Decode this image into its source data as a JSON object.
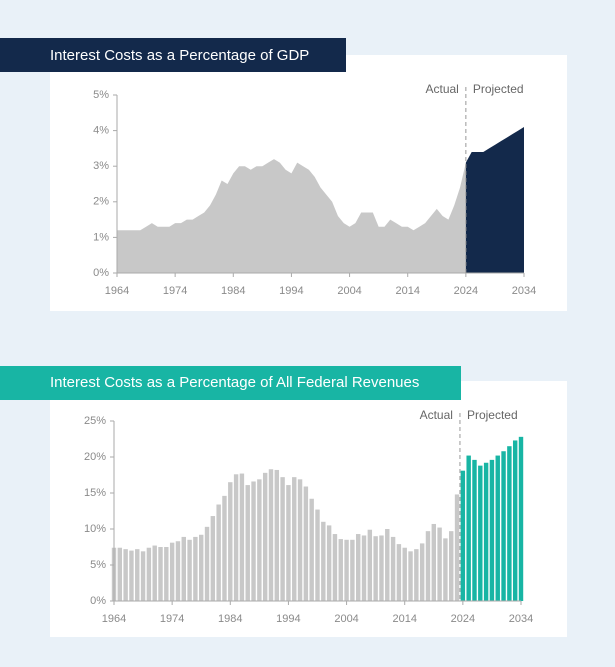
{
  "chart_data": [
    {
      "type": "area",
      "title": "Interest Costs as a Percentage of GDP",
      "series": [
        {
          "name": "Actual",
          "color": "#c8c8c8",
          "x": [
            1964,
            1965,
            1966,
            1967,
            1968,
            1969,
            1970,
            1971,
            1972,
            1973,
            1974,
            1975,
            1976,
            1977,
            1978,
            1979,
            1980,
            1981,
            1982,
            1983,
            1984,
            1985,
            1986,
            1987,
            1988,
            1989,
            1990,
            1991,
            1992,
            1993,
            1994,
            1995,
            1996,
            1997,
            1998,
            1999,
            2000,
            2001,
            2002,
            2003,
            2004,
            2005,
            2006,
            2007,
            2008,
            2009,
            2010,
            2011,
            2012,
            2013,
            2014,
            2015,
            2016,
            2017,
            2018,
            2019,
            2020,
            2021,
            2022,
            2023,
            2024
          ],
          "values": [
            1.2,
            1.2,
            1.2,
            1.2,
            1.2,
            1.3,
            1.4,
            1.3,
            1.3,
            1.3,
            1.4,
            1.4,
            1.5,
            1.5,
            1.6,
            1.7,
            1.9,
            2.2,
            2.6,
            2.5,
            2.8,
            3.0,
            3.0,
            2.9,
            3.0,
            3.0,
            3.1,
            3.2,
            3.1,
            2.9,
            2.8,
            3.1,
            3.0,
            2.9,
            2.7,
            2.4,
            2.2,
            2.0,
            1.6,
            1.4,
            1.3,
            1.4,
            1.7,
            1.7,
            1.7,
            1.3,
            1.3,
            1.5,
            1.4,
            1.3,
            1.3,
            1.2,
            1.3,
            1.4,
            1.6,
            1.8,
            1.6,
            1.5,
            1.9,
            2.4,
            3.1
          ]
        },
        {
          "name": "Projected",
          "color": "#13294b",
          "x": [
            2024,
            2025,
            2026,
            2027,
            2028,
            2029,
            2030,
            2031,
            2032,
            2033,
            2034
          ],
          "values": [
            3.1,
            3.4,
            3.4,
            3.4,
            3.5,
            3.6,
            3.7,
            3.8,
            3.9,
            4.0,
            4.1
          ]
        }
      ],
      "xlim": [
        1964,
        2034
      ],
      "xticks": [
        1964,
        1974,
        1984,
        1994,
        2004,
        2014,
        2024,
        2034
      ],
      "ylim": [
        0,
        5
      ],
      "yticks": [
        {
          "value": 0,
          "label": "0%"
        },
        {
          "value": 1,
          "label": "1%"
        },
        {
          "value": 2,
          "label": "2%"
        },
        {
          "value": 3,
          "label": "3%"
        },
        {
          "value": 4,
          "label": "4%"
        },
        {
          "value": 5,
          "label": "5%"
        }
      ]
    },
    {
      "type": "bar",
      "title": "Interest Costs as a Percentage of All Federal Revenues",
      "series": [
        {
          "name": "Actual",
          "color": "#c8c8c8",
          "x": [
            1964,
            1965,
            1966,
            1967,
            1968,
            1969,
            1970,
            1971,
            1972,
            1973,
            1974,
            1975,
            1976,
            1977,
            1978,
            1979,
            1980,
            1981,
            1982,
            1983,
            1984,
            1985,
            1986,
            1987,
            1988,
            1989,
            1990,
            1991,
            1992,
            1993,
            1994,
            1995,
            1996,
            1997,
            1998,
            1999,
            2000,
            2001,
            2002,
            2003,
            2004,
            2005,
            2006,
            2007,
            2008,
            2009,
            2010,
            2011,
            2012,
            2013,
            2014,
            2015,
            2016,
            2017,
            2018,
            2019,
            2020,
            2021,
            2022,
            2023
          ],
          "values": [
            7.4,
            7.4,
            7.2,
            7.0,
            7.2,
            6.9,
            7.4,
            7.7,
            7.5,
            7.5,
            8.1,
            8.3,
            8.9,
            8.5,
            8.9,
            9.2,
            10.3,
            11.8,
            13.4,
            14.6,
            16.5,
            17.6,
            17.7,
            16.1,
            16.6,
            16.9,
            17.8,
            18.3,
            18.2,
            17.2,
            16.1,
            17.2,
            16.9,
            15.9,
            14.2,
            12.7,
            11.0,
            10.5,
            9.3,
            8.6,
            8.5,
            8.5,
            9.3,
            9.1,
            9.9,
            9.0,
            9.1,
            10.0,
            8.9,
            7.9,
            7.4,
            6.9,
            7.2,
            8.0,
            9.7,
            10.7,
            10.2,
            8.7,
            9.7,
            14.8
          ]
        },
        {
          "name": "Projected",
          "color": "#18b5a4",
          "x": [
            2024,
            2025,
            2026,
            2027,
            2028,
            2029,
            2030,
            2031,
            2032,
            2033,
            2034
          ],
          "values": [
            18.1,
            20.2,
            19.6,
            18.8,
            19.2,
            19.6,
            20.2,
            20.8,
            21.5,
            22.3,
            22.8
          ]
        }
      ],
      "xlim": [
        1964,
        2034
      ],
      "xticks": [
        1964,
        1974,
        1984,
        1994,
        2004,
        2014,
        2024,
        2034
      ],
      "ylim": [
        0,
        25
      ],
      "yticks": [
        {
          "value": 0,
          "label": "0%"
        },
        {
          "value": 5,
          "label": "5%"
        },
        {
          "value": 10,
          "label": "10%"
        },
        {
          "value": 15,
          "label": "15%"
        },
        {
          "value": 20,
          "label": "20%"
        },
        {
          "value": 25,
          "label": "25%"
        }
      ]
    }
  ]
}
